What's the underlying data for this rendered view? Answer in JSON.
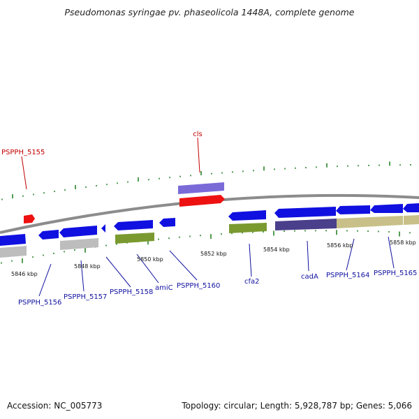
{
  "title": "Pseudomonas syringae pv. phaseolicola 1448A, complete genome",
  "footer": {
    "accession": "Accession: NC_005773",
    "summary": "Topology: circular; Length: 5,928,787 bp; Genes: 5,066"
  },
  "colors": {
    "backbone": "#9a9a9a",
    "tick": "#1a7a1a",
    "gene_label": "#1010a0",
    "red_label": "#c00000",
    "blue": "#1010e0",
    "red": "#ee1111",
    "purple": "#7a6ad8",
    "grey": "#bdbdbd",
    "olive": "#7a9a30",
    "navy": "#4a3f8a",
    "khaki": "#c8c088"
  },
  "scale_labels": [
    "5846 kbp",
    "5848 kbp",
    "5850 kbp",
    "5852 kbp",
    "5854 kbp",
    "5856 kbp",
    "5858 kbp"
  ],
  "gene_labels": [
    "PSPPH_5155",
    "cls",
    "PSPPH_5156",
    "PSPPH_5157",
    "PSPPH_5158",
    "amiC",
    "PSPPH_5160",
    "cfa2",
    "cadA",
    "PSPPH_5164",
    "PSPPH_5165"
  ]
}
